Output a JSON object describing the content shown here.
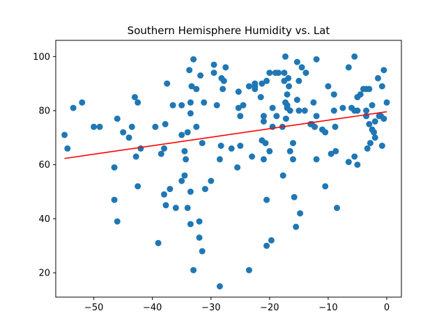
{
  "chart_data": {
    "type": "scatter",
    "title": "Southern Hemisphere Humidity vs. Lat",
    "xlabel": "",
    "ylabel": "",
    "xlim": [
      -56.5,
      2.5
    ],
    "ylim": [
      11,
      106
    ],
    "x_ticks": [
      -50,
      -40,
      -30,
      -20,
      -10,
      0
    ],
    "y_ticks": [
      20,
      40,
      60,
      80,
      100
    ],
    "grid": false,
    "colors": {
      "points": "#1f77b4",
      "regression": "#ff0000"
    },
    "regression": {
      "x": [
        -55,
        0
      ],
      "y": [
        62.3,
        79.6
      ]
    },
    "points": [
      [
        -55,
        71
      ],
      [
        -54.5,
        66
      ],
      [
        -53.5,
        81
      ],
      [
        -52,
        83
      ],
      [
        -50,
        74
      ],
      [
        -49,
        74
      ],
      [
        -46.5,
        59
      ],
      [
        -46.5,
        47
      ],
      [
        -46,
        77
      ],
      [
        -46,
        39
      ],
      [
        -45,
        72
      ],
      [
        -44,
        70
      ],
      [
        -43.5,
        74
      ],
      [
        -43,
        85
      ],
      [
        -42.8,
        63
      ],
      [
        -42.5,
        83
      ],
      [
        -42.5,
        52
      ],
      [
        -42,
        66
      ],
      [
        -39.5,
        74
      ],
      [
        -39,
        31
      ],
      [
        -38.5,
        64
      ],
      [
        -38,
        49
      ],
      [
        -38,
        66
      ],
      [
        -37.8,
        75
      ],
      [
        -37.7,
        45
      ],
      [
        -37.5,
        90
      ],
      [
        -37,
        51
      ],
      [
        -36.5,
        82
      ],
      [
        -36,
        44
      ],
      [
        -35,
        82
      ],
      [
        -35,
        54
      ],
      [
        -35,
        71
      ],
      [
        -34.5,
        65
      ],
      [
        -34.5,
        56
      ],
      [
        -34.3,
        62
      ],
      [
        -34,
        72
      ],
      [
        -34,
        44
      ],
      [
        -33.7,
        95
      ],
      [
        -33.5,
        79
      ],
      [
        -33.5,
        83
      ],
      [
        -33.5,
        50
      ],
      [
        -33.5,
        38
      ],
      [
        -33.3,
        89
      ],
      [
        -33,
        99
      ],
      [
        -33,
        21
      ],
      [
        -32.5,
        88
      ],
      [
        -32.5,
        74
      ],
      [
        -32,
        39
      ],
      [
        -32,
        33
      ],
      [
        -31.8,
        93
      ],
      [
        -31.5,
        28
      ],
      [
        -31.5,
        68
      ],
      [
        -31.2,
        83
      ],
      [
        -31,
        51
      ],
      [
        -30,
        54
      ],
      [
        -29.5,
        97
      ],
      [
        -29.5,
        94
      ],
      [
        -29,
        82
      ],
      [
        -28.5,
        62
      ],
      [
        -28.5,
        15
      ],
      [
        -28.3,
        67
      ],
      [
        -28.2,
        92
      ],
      [
        -28,
        88
      ],
      [
        -27.8,
        91
      ],
      [
        -27.5,
        96
      ],
      [
        -26.5,
        66
      ],
      [
        -25.5,
        59
      ],
      [
        -25.3,
        87
      ],
      [
        -25.3,
        81
      ],
      [
        -25,
        78
      ],
      [
        -25,
        67
      ],
      [
        -24.5,
        82
      ],
      [
        -23.5,
        89
      ],
      [
        -23.5,
        21
      ],
      [
        -23,
        63
      ],
      [
        -22.5,
        89
      ],
      [
        -22.5,
        88
      ],
      [
        -22.5,
        90
      ],
      [
        -21.5,
        85
      ],
      [
        -21.3,
        90
      ],
      [
        -21.3,
        69
      ],
      [
        -21,
        76
      ],
      [
        -21,
        78
      ],
      [
        -21,
        62
      ],
      [
        -20.7,
        68
      ],
      [
        -20.5,
        91
      ],
      [
        -20.5,
        47
      ],
      [
        -20.5,
        30
      ],
      [
        -20,
        94
      ],
      [
        -20,
        65
      ],
      [
        -19.7,
        32
      ],
      [
        -19.5,
        81
      ],
      [
        -19.5,
        74
      ],
      [
        -19,
        94
      ],
      [
        -18.8,
        78
      ],
      [
        -18.5,
        94
      ],
      [
        -17.8,
        74
      ],
      [
        -17.7,
        56
      ],
      [
        -17.5,
        91
      ],
      [
        -17.5,
        94
      ],
      [
        -17.3,
        100
      ],
      [
        -17.3,
        83
      ],
      [
        -17.2,
        77
      ],
      [
        -17,
        86
      ],
      [
        -17,
        82
      ],
      [
        -17,
        81
      ],
      [
        -16.8,
        92
      ],
      [
        -16.7,
        89
      ],
      [
        -16.5,
        80
      ],
      [
        -16.5,
        65
      ],
      [
        -16,
        62
      ],
      [
        -16,
        68
      ],
      [
        -15.8,
        48
      ],
      [
        -15.5,
        37
      ],
      [
        -15.3,
        84
      ],
      [
        -15.3,
        98
      ],
      [
        -15,
        91
      ],
      [
        -15,
        80
      ],
      [
        -14.8,
        42
      ],
      [
        -14.5,
        96
      ],
      [
        -14,
        80
      ],
      [
        -13.8,
        94
      ],
      [
        -13,
        75
      ],
      [
        -12.8,
        75
      ],
      [
        -12.5,
        83
      ],
      [
        -12.3,
        74
      ],
      [
        -12,
        78
      ],
      [
        -12,
        99
      ],
      [
        -12,
        62
      ],
      [
        -11,
        73
      ],
      [
        -10.5,
        72
      ],
      [
        -10.5,
        52
      ],
      [
        -10,
        89
      ],
      [
        -9.5,
        64
      ],
      [
        -9,
        86
      ],
      [
        -9,
        80
      ],
      [
        -8.8,
        74
      ],
      [
        -8.7,
        65
      ],
      [
        -8.5,
        44
      ],
      [
        -7.5,
        81
      ],
      [
        -6.5,
        96
      ],
      [
        -6.5,
        61
      ],
      [
        -6,
        81
      ],
      [
        -5.5,
        100
      ],
      [
        -5.5,
        80
      ],
      [
        -5.5,
        63
      ],
      [
        -5,
        85
      ],
      [
        -5,
        80
      ],
      [
        -5,
        60
      ],
      [
        -4.5,
        86
      ],
      [
        -4,
        88
      ],
      [
        -3.5,
        88
      ],
      [
        -3.5,
        80
      ],
      [
        -3.5,
        78
      ],
      [
        -3.3,
        66
      ],
      [
        -3,
        88
      ],
      [
        -3,
        75
      ],
      [
        -2.8,
        68
      ],
      [
        -2.5,
        82
      ],
      [
        -2.5,
        73
      ],
      [
        -2.2,
        72
      ],
      [
        -2,
        76
      ],
      [
        -2,
        70
      ],
      [
        -1.5,
        92
      ],
      [
        -1.3,
        78
      ],
      [
        -1,
        78
      ],
      [
        -0.8,
        89
      ],
      [
        -0.8,
        67
      ],
      [
        -0.5,
        95
      ],
      [
        -0.5,
        77
      ],
      [
        0,
        83
      ]
    ]
  }
}
